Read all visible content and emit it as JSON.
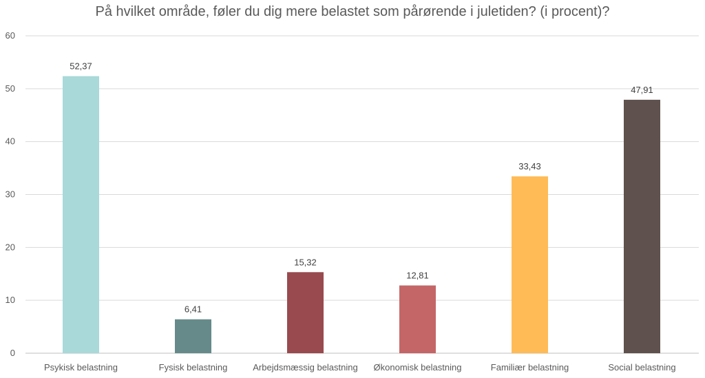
{
  "chart_data": {
    "type": "bar",
    "title": "På hvilket område, føler du dig mere belastet som pårørende i juletiden? (i procent)?",
    "xlabel": "",
    "ylabel": "",
    "ylim": [
      0,
      60
    ],
    "yticks": [
      0,
      10,
      20,
      30,
      40,
      50,
      60
    ],
    "grid": true,
    "categories": [
      "Psykisk belastning",
      "Fysisk belastning",
      "Arbejdsmæssig belastning",
      "Økonomisk belastning",
      "Familiær belastning",
      "Social belastning"
    ],
    "values": [
      52.37,
      6.41,
      15.32,
      12.81,
      33.43,
      47.91
    ],
    "value_labels": [
      "52,37",
      "6,41",
      "15,32",
      "12,81",
      "33,43",
      "47,91"
    ],
    "colors": [
      "#A9D9D9",
      "#668A8A",
      "#994A4E",
      "#C46667",
      "#FFBB55",
      "#5F514D"
    ]
  }
}
